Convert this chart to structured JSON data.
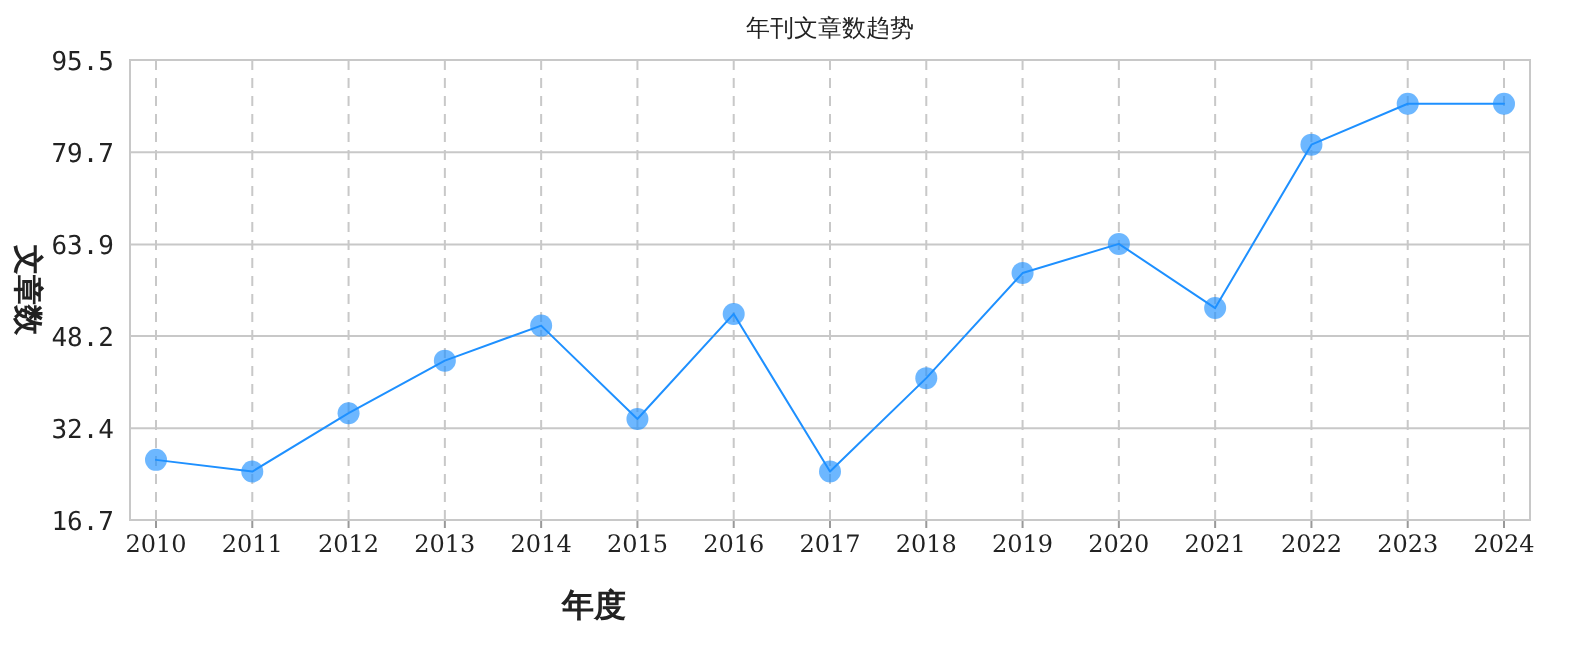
{
  "chart_data": {
    "type": "line",
    "title": "年刊文章数趋势",
    "xlabel": "年度",
    "ylabel": "文章数",
    "categories": [
      "2010",
      "2011",
      "2012",
      "2013",
      "2014",
      "2015",
      "2016",
      "2017",
      "2018",
      "2019",
      "2020",
      "2021",
      "2022",
      "2023",
      "2024"
    ],
    "series": [
      {
        "color": "#1e90ff",
        "values": [
          27,
          25,
          35,
          44,
          50,
          34,
          52,
          25,
          41,
          59,
          64,
          53,
          81,
          88,
          88
        ]
      }
    ],
    "ylim": [
      16.7,
      95.5
    ],
    "yticks": [
      16.7,
      32.4,
      48.2,
      63.9,
      79.7,
      95.5
    ],
    "grid": true,
    "marker": "circle",
    "line_style": "solid"
  }
}
